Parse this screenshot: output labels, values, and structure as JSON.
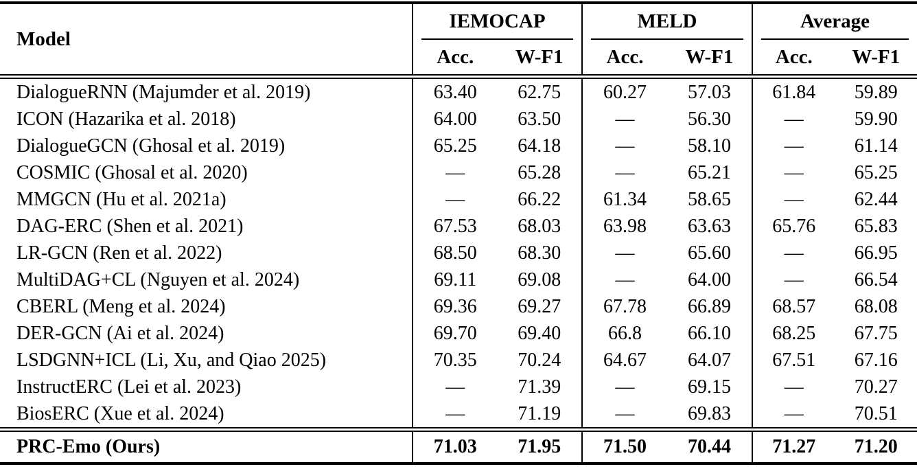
{
  "colors": {
    "background": "#ffffff",
    "text": "#000000",
    "rule": "#000000"
  },
  "table": {
    "model_header": "Model",
    "groups": [
      {
        "label": "IEMOCAP",
        "columns": [
          "Acc.",
          "W-F1"
        ]
      },
      {
        "label": "MELD",
        "columns": [
          "Acc.",
          "W-F1"
        ]
      },
      {
        "label": "Average",
        "columns": [
          "Acc.",
          "W-F1"
        ]
      }
    ],
    "rows": [
      {
        "model": "DialogueRNN (Majumder et al. 2019)",
        "values": [
          "63.40",
          "62.75",
          "60.27",
          "57.03",
          "61.84",
          "59.89"
        ]
      },
      {
        "model": "ICON (Hazarika et al. 2018)",
        "values": [
          "64.00",
          "63.50",
          "—",
          "56.30",
          "—",
          "59.90"
        ]
      },
      {
        "model": "DialogueGCN (Ghosal et al. 2019)",
        "values": [
          "65.25",
          "64.18",
          "—",
          "58.10",
          "—",
          "61.14"
        ]
      },
      {
        "model": "COSMIC (Ghosal et al. 2020)",
        "values": [
          "—",
          "65.28",
          "—",
          "65.21",
          "—",
          "65.25"
        ]
      },
      {
        "model": "MMGCN (Hu et al. 2021a)",
        "values": [
          "—",
          "66.22",
          "61.34",
          "58.65",
          "—",
          "62.44"
        ]
      },
      {
        "model": "DAG-ERC (Shen et al. 2021)",
        "values": [
          "67.53",
          "68.03",
          "63.98",
          "63.63",
          "65.76",
          "65.83"
        ]
      },
      {
        "model": "LR-GCN (Ren et al. 2022)",
        "values": [
          "68.50",
          "68.30",
          "—",
          "65.60",
          "—",
          "66.95"
        ]
      },
      {
        "model": "MultiDAG+CL (Nguyen et al. 2024)",
        "values": [
          "69.11",
          "69.08",
          "—",
          "64.00",
          "—",
          "66.54"
        ]
      },
      {
        "model": "CBERL (Meng et al. 2024)",
        "values": [
          "69.36",
          "69.27",
          "67.78",
          "66.89",
          "68.57",
          "68.08"
        ]
      },
      {
        "model": "DER-GCN (Ai et al. 2024)",
        "values": [
          "69.70",
          "69.40",
          "66.8",
          "66.10",
          "68.25",
          "67.75"
        ]
      },
      {
        "model": "LSDGNN+ICL (Li, Xu, and Qiao 2025)",
        "values": [
          "70.35",
          "70.24",
          "64.67",
          "64.07",
          "67.51",
          "67.16"
        ]
      },
      {
        "model": "InstructERC (Lei et al. 2023)",
        "values": [
          "—",
          "71.39",
          "—",
          "69.15",
          "—",
          "70.27"
        ]
      },
      {
        "model": "BiosERC (Xue et al. 2024)",
        "values": [
          "—",
          "71.19",
          "—",
          "69.83",
          "—",
          "70.51"
        ]
      }
    ],
    "final_row": {
      "model": "PRC-Emo (Ours)",
      "values": [
        "71.03",
        "71.95",
        "71.50",
        "70.44",
        "71.27",
        "71.20"
      ]
    }
  }
}
